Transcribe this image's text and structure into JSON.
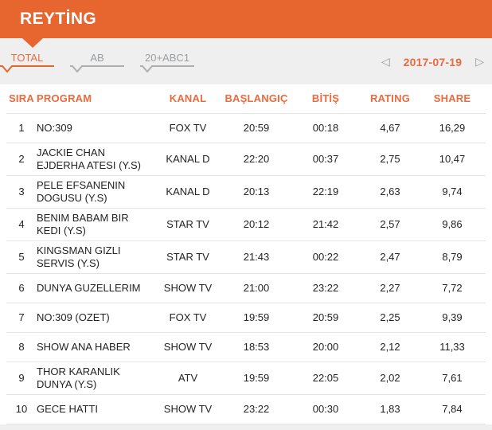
{
  "colors": {
    "accent": "#E7652F",
    "accent_text": "#EC6A3D",
    "page_bg": "#EFEFEF",
    "table_bg": "#FFFFFF",
    "divider": "#E3E3E3",
    "inactive_tab_text": "#9B9EA1",
    "inactive_tab_line": "#ACAEB0",
    "body_text": "#232323",
    "arrow": "#96989B"
  },
  "header": {
    "title": "REYTİNG"
  },
  "tabs": [
    {
      "label": "TOTAL",
      "active": true
    },
    {
      "label": "AB",
      "active": false
    },
    {
      "label": "20+ABC1",
      "active": false
    }
  ],
  "date_nav": {
    "date": "2017-07-19",
    "prev_icon": "◁",
    "next_icon": "▷"
  },
  "table": {
    "columns": [
      "SIRA",
      "PROGRAM",
      "KANAL",
      "BAŞLANGIÇ",
      "BİTİŞ",
      "RATING",
      "SHARE"
    ],
    "rows": [
      [
        "1",
        "NO:309",
        "FOX TV",
        "20:59",
        "00:18",
        "4,67",
        "16,29"
      ],
      [
        "2",
        "JACKIE CHAN EJDERHA ATESI (Y.S)",
        "KANAL D",
        "22:20",
        "00:37",
        "2,75",
        "10,47"
      ],
      [
        "3",
        "PELE EFSANENIN DOGUSU (Y.S)",
        "KANAL D",
        "20:13",
        "22:19",
        "2,63",
        "9,74"
      ],
      [
        "4",
        "BENIM BABAM BIR KEDI (Y.S)",
        "STAR TV",
        "20:12",
        "21:42",
        "2,57",
        "9,86"
      ],
      [
        "5",
        "KINGSMAN GIZLI SERVIS (Y.S)",
        "STAR TV",
        "21:43",
        "00:22",
        "2,47",
        "8,79"
      ],
      [
        "6",
        "DUNYA GUZELLERIM",
        "SHOW TV",
        "21:00",
        "23:22",
        "2,27",
        "7,72"
      ],
      [
        "7",
        "NO:309 (OZET)",
        "FOX TV",
        "19:59",
        "20:59",
        "2,25",
        "9,39"
      ],
      [
        "8",
        "SHOW ANA HABER",
        "SHOW TV",
        "18:53",
        "20:00",
        "2,12",
        "11,33"
      ],
      [
        "9",
        "THOR KARANLIK DUNYA (Y.S)",
        "ATV",
        "19:59",
        "22:05",
        "2,02",
        "7,61"
      ],
      [
        "10",
        "GECE HATTI",
        "SHOW TV",
        "23:22",
        "00:30",
        "1,83",
        "7,84"
      ]
    ]
  }
}
